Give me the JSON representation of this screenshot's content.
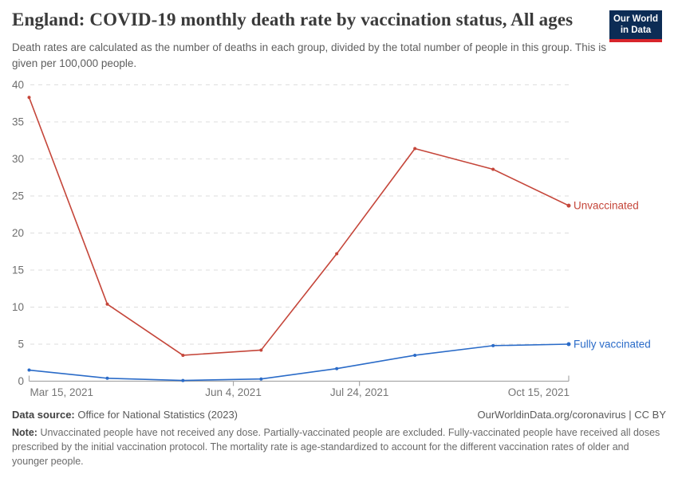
{
  "header": {
    "title": "England: COVID-19 monthly death rate by vaccination status, All ages",
    "subtitle": "Death rates are calculated as the number of deaths in each group, divided by the total number of people in this group. This is given per 100,000 people.",
    "logo": {
      "line1": "Our World",
      "line2": "in Data"
    }
  },
  "chart_data": {
    "type": "line",
    "title": "England: COVID-19 monthly death rate by vaccination status, All ages",
    "x_unit": "date",
    "x_dates": [
      "Mar 15, 2021",
      "Apr 15, 2021",
      "May 15, 2021",
      "Jun 15, 2021",
      "Jul 15, 2021",
      "Aug 15, 2021",
      "Sep 15, 2021",
      "Oct 15, 2021"
    ],
    "x_days": [
      0,
      31,
      61,
      92,
      122,
      153,
      184,
      214
    ],
    "x_ticks": [
      {
        "label": "Mar 15, 2021",
        "day": 0
      },
      {
        "label": "Jun 4, 2021",
        "day": 81
      },
      {
        "label": "Jul 24, 2021",
        "day": 131
      },
      {
        "label": "Oct 15, 2021",
        "day": 214
      }
    ],
    "y_ticks": [
      0,
      5,
      10,
      15,
      20,
      25,
      30,
      35,
      40
    ],
    "ylim": [
      0,
      40
    ],
    "grid": "horizontal-dashed",
    "legend_position": "end-of-line",
    "series": [
      {
        "name": "Unvaccinated",
        "color": "#c5463a",
        "values": [
          38.3,
          10.4,
          3.5,
          4.2,
          17.2,
          31.4,
          28.6,
          23.7
        ]
      },
      {
        "name": "Fully vaccinated",
        "color": "#2a6bc8",
        "values": [
          1.5,
          0.4,
          0.1,
          0.3,
          1.7,
          3.5,
          4.8,
          5.0
        ]
      }
    ]
  },
  "footer": {
    "source_label": "Data source:",
    "source_text": "Office for National Statistics (2023)",
    "attribution": "OurWorldinData.org/coronavirus | CC BY",
    "note_label": "Note:",
    "note_text": "Unvaccinated people have not received any dose. Partially-vaccinated people are excluded. Fully-vaccinated people have received all doses prescribed by the initial vaccination protocol. The mortality rate is age-standardized to account for the different vaccination rates of older and younger people."
  },
  "colors": {
    "brand_navy": "#0c2c55",
    "brand_red": "#d8252b",
    "axis": "#a8a8a8",
    "gridline": "#dedede",
    "tick_text": "#6e6e6e"
  }
}
